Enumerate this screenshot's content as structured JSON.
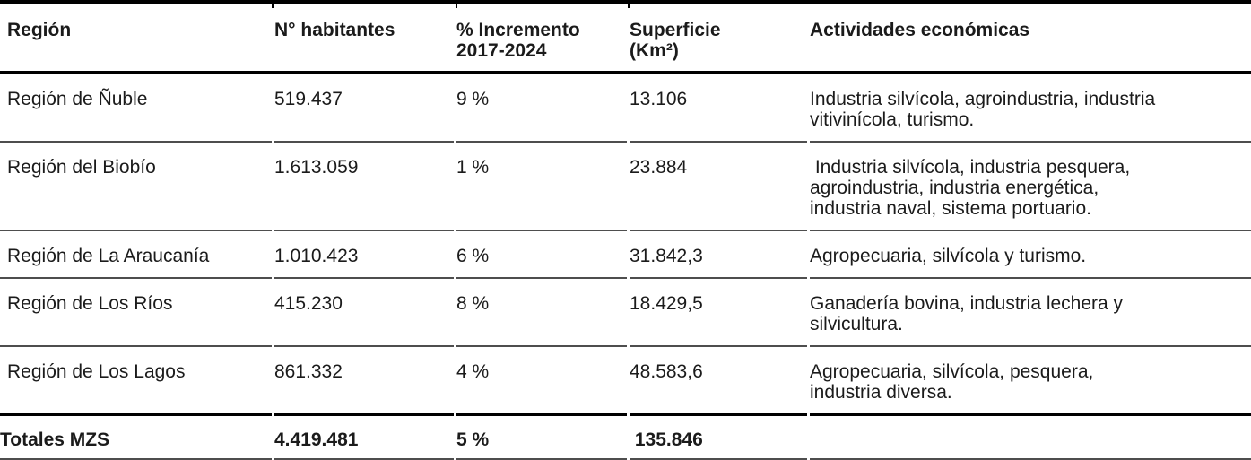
{
  "chart_data": {
    "type": "table",
    "columns": [
      "Región",
      "N° habitantes",
      "% Incremento\n2017-2024",
      "Superficie\n(Km²)",
      "Actividades económicas"
    ],
    "rows": [
      [
        "Región de Ñuble",
        "519.437",
        "9 %",
        "13.106",
        "Industria silvícola, agroindustria, industria\nvitivinícola, turismo."
      ],
      [
        "Región del Biobío",
        "1.613.059",
        "1 %",
        "23.884",
        " Industria silvícola, industria pesquera,\nagroindustria, industria energética,\nindustria naval, sistema portuario."
      ],
      [
        "Región de La Araucanía",
        "1.010.423",
        "6 %",
        "31.842,3",
        "Agropecuaria, silvícola y turismo."
      ],
      [
        "Región de Los Ríos",
        "415.230",
        "8 %",
        "18.429,5",
        "Ganadería bovina, industria lechera y\nsilvicultura."
      ],
      [
        "Región de Los Lagos",
        "861.332",
        "4 %",
        "48.583,6",
        "Agropecuaria, silvícola, pesquera,\nindustria diversa."
      ]
    ],
    "totals": [
      "Totales MZS",
      "4.419.481",
      "5 %",
      " 135.846",
      ""
    ],
    "title": "",
    "colors": {
      "text": "#1b1b1b",
      "heavy_rule": "#000000",
      "row_rule": "#4e4e4e",
      "background": "#ffffff"
    }
  }
}
